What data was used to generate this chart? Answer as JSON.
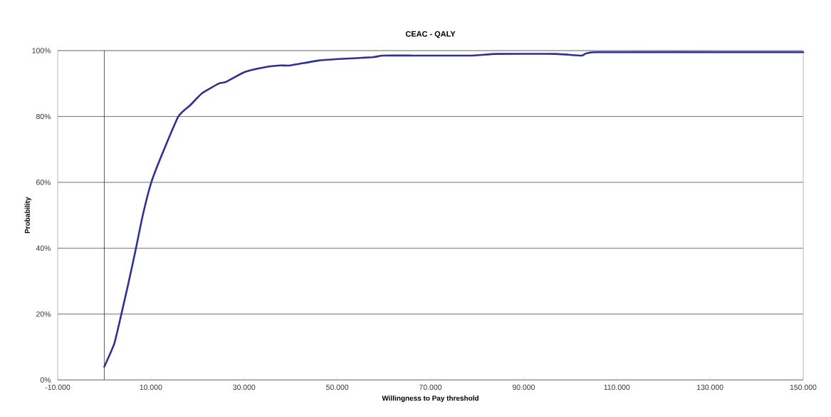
{
  "chart_data": {
    "type": "line",
    "title": "CEAC - QALY",
    "xlabel": "Willingness to Pay threshold",
    "ylabel": "Probability",
    "x": [
      0,
      2140,
      3670,
      5200,
      6730,
      8260,
      10090,
      12400,
      15900,
      18500,
      20950,
      24600,
      26150,
      30150,
      34700,
      37800,
      39900,
      46000,
      51100,
      57600,
      59800,
      66300,
      67900,
      79000,
      84200,
      96900,
      102500,
      105600,
      140800,
      142300,
      150000
    ],
    "series": [
      {
        "color": "#2e3192",
        "values": [
          4,
          11,
          20,
          29.5,
          39.5,
          50,
          60,
          68.5,
          80,
          83.5,
          87,
          90,
          90.5,
          93.5,
          95,
          95.5,
          95.5,
          97,
          97.5,
          98,
          98.5,
          98.5,
          98.5,
          98.5,
          99,
          99,
          98.5,
          99.5,
          99.5,
          99.5,
          99.5
        ]
      }
    ],
    "xlim": [
      -10000,
      150000
    ],
    "xticks": [
      {
        "value": -10000,
        "label": "-10.000"
      },
      {
        "value": 10000,
        "label": "10.000"
      },
      {
        "value": 30000,
        "label": "30.000"
      },
      {
        "value": 50000,
        "label": "50.000"
      },
      {
        "value": 70000,
        "label": "70.000"
      },
      {
        "value": 90000,
        "label": "90.000"
      },
      {
        "value": 110000,
        "label": "110.000"
      },
      {
        "value": 130000,
        "label": "130.000"
      },
      {
        "value": 150000,
        "label": "150.000"
      }
    ],
    "ylim": [
      0,
      100
    ],
    "yticks": [
      {
        "value": 0,
        "label": "0%"
      },
      {
        "value": 20,
        "label": "20%"
      },
      {
        "value": 40,
        "label": "40%"
      },
      {
        "value": 60,
        "label": "60%"
      },
      {
        "value": 80,
        "label": "80%"
      },
      {
        "value": 100,
        "label": "100%"
      }
    ],
    "grid": "y",
    "marker": "none",
    "line_style": "solid",
    "ref_lines": [
      {
        "axis": "x",
        "value": 0,
        "color": "#333333"
      }
    ]
  }
}
